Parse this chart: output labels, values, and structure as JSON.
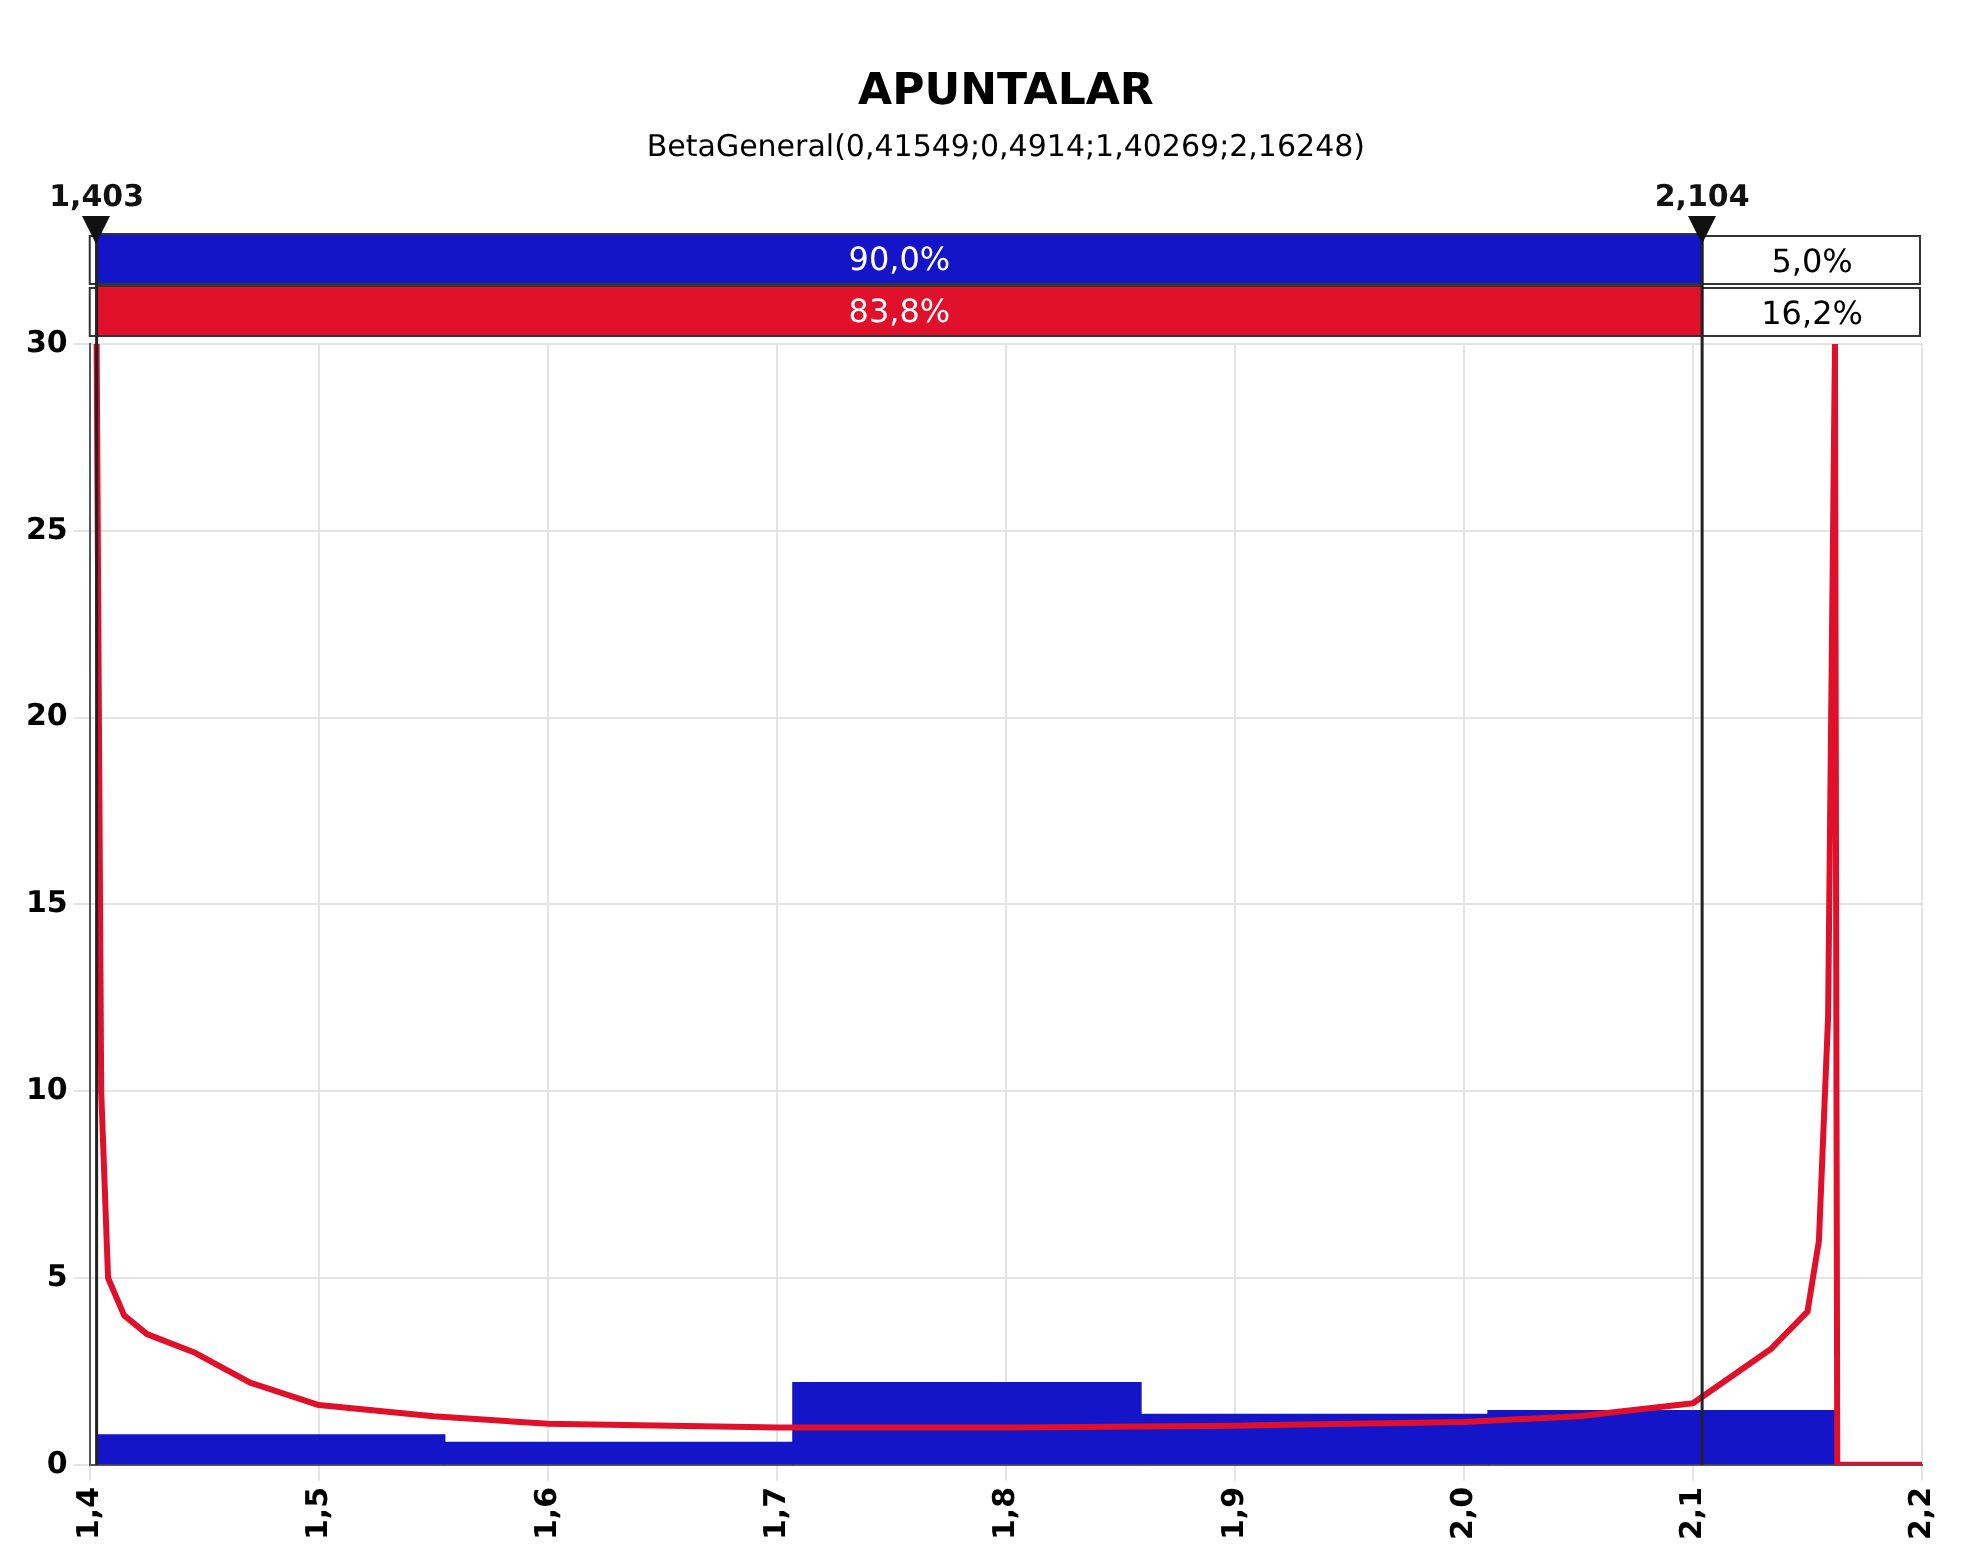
{
  "chart_data": {
    "type": "histogram",
    "title": "APUNTALAR",
    "subtitle": "BetaGeneral(0,41549;0,4914;1,40269;2,16248)",
    "bins": [
      1.403,
      1.555,
      1.707,
      1.859,
      2.011,
      2.162
    ],
    "series": [
      {
        "type": "histogram",
        "color": "#1414c8",
        "values": [
          0.8,
          0.6,
          2.2,
          1.35,
          1.45
        ]
      },
      {
        "type": "line",
        "color": "#e0102a",
        "x": [
          1.403,
          1.405,
          1.408,
          1.415,
          1.425,
          1.446,
          1.47,
          1.5,
          1.55,
          1.6,
          1.7,
          1.8,
          1.9,
          2.0,
          2.05,
          2.1,
          2.134,
          2.15,
          2.155,
          2.159,
          2.162,
          2.163,
          2.2
        ],
        "values": [
          30,
          10,
          5,
          4,
          3.5,
          3,
          2.2,
          1.6,
          1.3,
          1.1,
          1,
          1,
          1.05,
          1.15,
          1.3,
          1.65,
          3.1,
          4.1,
          6,
          12,
          30,
          0,
          0
        ]
      }
    ],
    "ref_lines": [
      {
        "axis": "x",
        "value": 1.403,
        "label": "1,403"
      },
      {
        "axis": "x",
        "value": 2.104,
        "label": "2,104"
      }
    ],
    "annotations": [
      "90,0%",
      "5,0%",
      "83,8%",
      "16,2%"
    ],
    "xlim": [
      1.4,
      2.2
    ],
    "xticks": [
      {
        "value": 1.4,
        "label": "1,4"
      },
      {
        "value": 1.5,
        "label": "1,5"
      },
      {
        "value": 1.6,
        "label": "1,6"
      },
      {
        "value": 1.7,
        "label": "1,7"
      },
      {
        "value": 1.8,
        "label": "1,8"
      },
      {
        "value": 1.9,
        "label": "1,9"
      },
      {
        "value": 2.0,
        "label": "2,0"
      },
      {
        "value": 2.1,
        "label": "2,1"
      },
      {
        "value": 2.2,
        "label": "2,2"
      }
    ],
    "ylim": [
      0,
      30
    ],
    "yticks": [
      0,
      5,
      10,
      15,
      20,
      25,
      30
    ],
    "grid": true,
    "legend": false
  }
}
